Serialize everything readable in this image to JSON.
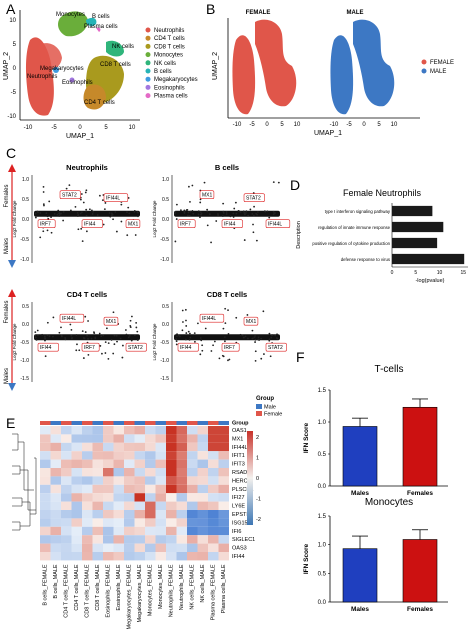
{
  "panels": {
    "A": {
      "letter": "A",
      "xlabel": "UMAP_1",
      "ylabel": "UMAP_2",
      "xticks": [
        "-10",
        "-5",
        "0",
        "5",
        "10"
      ],
      "yticks": [
        "10",
        "5",
        "0",
        "-5",
        "-10"
      ],
      "cluster_labels": [
        "Monocytes",
        "B cells",
        "Plasma cells",
        "NK cells",
        "CD8 T cells",
        "Megakaryocytes",
        "Neutrophils",
        "Eosinophils",
        "CD4 T cells"
      ],
      "legend": [
        {
          "name": "Neutrophils",
          "color": "#e0564a"
        },
        {
          "name": "CD4 T cells",
          "color": "#c6892a"
        },
        {
          "name": "CD8 T cells",
          "color": "#a99a1e"
        },
        {
          "name": "Monocytes",
          "color": "#6aae3a"
        },
        {
          "name": "NK cells",
          "color": "#2fb57b"
        },
        {
          "name": "B cells",
          "color": "#27b4b7"
        },
        {
          "name": "Megakaryocytes",
          "color": "#3f9be0"
        },
        {
          "name": "Eosinophils",
          "color": "#a277e0"
        },
        {
          "name": "Plasma cells",
          "color": "#e46ac6"
        }
      ]
    },
    "B": {
      "letter": "B",
      "female_title": "FEMALE",
      "male_title": "MALE",
      "xlabel": "UMAP_1",
      "ylabel": "UMAP_2",
      "xticks": [
        "-10",
        "-5",
        "0",
        "5",
        "10",
        "-10",
        "-5",
        "0",
        "5",
        "10"
      ],
      "legend": [
        {
          "name": "FEMALE",
          "color": "#e0564a"
        },
        {
          "name": "MALE",
          "color": "#3d78c4"
        }
      ]
    },
    "C": {
      "letter": "C",
      "females_label": "Females",
      "males_label": "Males",
      "ylabel": "Log2 Fold Change",
      "subplots": [
        {
          "title": "Neutrophils",
          "genes": [
            "IRF7",
            "STAT2",
            "IFI44",
            "IFI44L",
            "MX1"
          ]
        },
        {
          "title": "B cells",
          "genes": [
            "IRF7",
            "MX1",
            "IFI44",
            "STAT2",
            "IFI44L"
          ]
        },
        {
          "title": "CD4 T cells",
          "genes": [
            "IFI44",
            "IFI44L",
            "IRF7",
            "MX1",
            "STAT2"
          ]
        },
        {
          "title": "CD8 T cells",
          "genes": [
            "IFI44",
            "IFI44L",
            "IRF7",
            "MX1",
            "STAT2"
          ]
        }
      ],
      "yticks_top": [
        "1.0",
        "0.5",
        "0.0",
        "-0.5",
        "-1.0"
      ],
      "yticks_bottom": [
        "0.5",
        "0.0",
        "-0.5",
        "-1.0",
        "-1.5"
      ]
    },
    "D": {
      "letter": "D",
      "title": "Female Neutrophils",
      "ylabel": "Description",
      "xlabel": "-log(pvalue)",
      "xticks": [
        "0",
        "5",
        "10",
        "15"
      ],
      "bar_color": "#1a1a1a"
    },
    "E": {
      "letter": "E",
      "group_label": "Group",
      "legend_title": "Group",
      "legend": [
        {
          "name": "Male",
          "color": "#3d78c4"
        },
        {
          "name": "Female",
          "color": "#e0564a"
        }
      ],
      "scale_ticks": [
        "2",
        "1",
        "0",
        "-1",
        "-2"
      ],
      "genes": [
        "OAS1",
        "MX1",
        "IFI44L",
        "IFIT1",
        "IFIT3",
        "RSAD2",
        "HERC5",
        "PLSCR1",
        "IFI27",
        "LY6E",
        "EPSTI1",
        "ISG15",
        "IFI6",
        "SIGLEC1",
        "OAS3",
        "IFI44"
      ],
      "columns": [
        "B cells_FEMALE",
        "B cells_MALE",
        "CD4 T cells_FEMALE",
        "CD4 T cells_MALE",
        "CD8 T cells_FEMALE",
        "CD8 T cells_MALE",
        "Eosinophils_FEMALE",
        "Eosinophils_MALE",
        "Megakaryocytes_FEMALE",
        "Megakaryocytes_MALE",
        "Monocytes_FEMALE",
        "Monocytes_MALE",
        "Neutrophils_FEMALE",
        "Neutrophils_MALE",
        "NK cells_FEMALE",
        "NK cells_MALE",
        "Plasma cells_FEMALE",
        "Plasma cells_MALE"
      ]
    },
    "F": {
      "letter": "F",
      "ylabel": "IFN Score",
      "bar_colors": [
        "#1f3fbf",
        "#cc1111"
      ]
    }
  },
  "chart_data": [
    {
      "type": "bar",
      "title": "Female Neutrophils",
      "xlabel": "-log(pvalue)",
      "ylabel": "Description",
      "categories": [
        "type I interferon signaling pathway",
        "regulation of innate immune response",
        "positive regulation of cytokine production",
        "defense response to virus"
      ],
      "values": [
        8.5,
        10.8,
        9.5,
        15.2
      ],
      "xlim": [
        0,
        16
      ]
    },
    {
      "type": "bar",
      "title": "T-cells",
      "ylabel": "IFN Score",
      "categories": [
        "Males",
        "Females"
      ],
      "values": [
        0.93,
        1.23
      ],
      "errors": [
        0.13,
        0.13
      ],
      "ylim": [
        0,
        1.5
      ],
      "yticks": [
        "0.0",
        "0.5",
        "1.0",
        "1.5"
      ]
    },
    {
      "type": "bar",
      "title": "Monocytes",
      "ylabel": "IFN Score",
      "categories": [
        "Males",
        "Females"
      ],
      "values": [
        0.93,
        1.09
      ],
      "errors": [
        0.22,
        0.17
      ],
      "ylim": [
        0,
        1.5
      ],
      "yticks": [
        "0.0",
        "0.5",
        "1.0",
        "1.5"
      ]
    }
  ]
}
